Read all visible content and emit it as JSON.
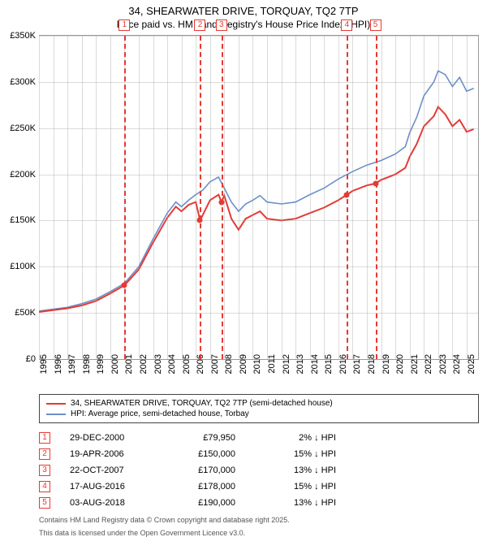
{
  "title": "34, SHEARWATER DRIVE, TORQUAY, TQ2 7TP",
  "subtitle": "Price paid vs. HM Land Registry's House Price Index (HPI)",
  "chart": {
    "type": "line",
    "xlim": [
      1995,
      2025.8
    ],
    "ylim": [
      0,
      350000
    ],
    "ytick_step": 50000,
    "yticks": [
      "£0",
      "£50K",
      "£100K",
      "£150K",
      "£200K",
      "£250K",
      "£300K",
      "£350K"
    ],
    "xticks": [
      1995,
      1996,
      1997,
      1998,
      1999,
      2000,
      2001,
      2002,
      2003,
      2004,
      2005,
      2006,
      2007,
      2008,
      2009,
      2010,
      2011,
      2012,
      2013,
      2014,
      2015,
      2016,
      2017,
      2018,
      2019,
      2020,
      2021,
      2022,
      2023,
      2024,
      2025
    ],
    "grid_color": "#999999",
    "background_color": "#ffffff",
    "series": [
      {
        "name": "HPI: Average price, semi-detached house, Torbay",
        "color": "#6b8fc9",
        "width": 1.6,
        "points": [
          [
            1995,
            52000
          ],
          [
            1996,
            54000
          ],
          [
            1997,
            56000
          ],
          [
            1998,
            60000
          ],
          [
            1999,
            65000
          ],
          [
            2000,
            73000
          ],
          [
            2001,
            82000
          ],
          [
            2002,
            100000
          ],
          [
            2003,
            130000
          ],
          [
            2004,
            158000
          ],
          [
            2004.6,
            170000
          ],
          [
            2005,
            165000
          ],
          [
            2005.5,
            172000
          ],
          [
            2006,
            178000
          ],
          [
            2006.5,
            183000
          ],
          [
            2007,
            192000
          ],
          [
            2007.6,
            197000
          ],
          [
            2008,
            185000
          ],
          [
            2008.5,
            170000
          ],
          [
            2009,
            160000
          ],
          [
            2009.5,
            168000
          ],
          [
            2010,
            172000
          ],
          [
            2010.5,
            177000
          ],
          [
            2011,
            170000
          ],
          [
            2012,
            168000
          ],
          [
            2013,
            170000
          ],
          [
            2014,
            178000
          ],
          [
            2015,
            185000
          ],
          [
            2016,
            195000
          ],
          [
            2017,
            203000
          ],
          [
            2018,
            210000
          ],
          [
            2019,
            215000
          ],
          [
            2020,
            222000
          ],
          [
            2020.7,
            230000
          ],
          [
            2021,
            245000
          ],
          [
            2021.5,
            262000
          ],
          [
            2022,
            285000
          ],
          [
            2022.7,
            300000
          ],
          [
            2023,
            312000
          ],
          [
            2023.5,
            308000
          ],
          [
            2024,
            295000
          ],
          [
            2024.5,
            305000
          ],
          [
            2025,
            290000
          ],
          [
            2025.5,
            293000
          ]
        ]
      },
      {
        "name": "34, SHEARWATER DRIVE, TORQUAY, TQ2 7TP (semi-detached house)",
        "color": "#e53935",
        "width": 2,
        "points": [
          [
            1995,
            51000
          ],
          [
            1996,
            53000
          ],
          [
            1997,
            55000
          ],
          [
            1998,
            58000
          ],
          [
            1999,
            63000
          ],
          [
            2000,
            71000
          ],
          [
            2001,
            79950
          ],
          [
            2002,
            97000
          ],
          [
            2003,
            126000
          ],
          [
            2004,
            153000
          ],
          [
            2004.6,
            165000
          ],
          [
            2005,
            160000
          ],
          [
            2005.5,
            167000
          ],
          [
            2006,
            170000
          ],
          [
            2006.3,
            150000
          ],
          [
            2007,
            172000
          ],
          [
            2007.6,
            178000
          ],
          [
            2007.8,
            170000
          ],
          [
            2008,
            177000
          ],
          [
            2008.5,
            152000
          ],
          [
            2009,
            140000
          ],
          [
            2009.5,
            152000
          ],
          [
            2010,
            156000
          ],
          [
            2010.5,
            160000
          ],
          [
            2011,
            152000
          ],
          [
            2012,
            150000
          ],
          [
            2013,
            152000
          ],
          [
            2014,
            158000
          ],
          [
            2015,
            164000
          ],
          [
            2016,
            172000
          ],
          [
            2016.6,
            178000
          ],
          [
            2017,
            182000
          ],
          [
            2018,
            188000
          ],
          [
            2018.6,
            190000
          ],
          [
            2019,
            194000
          ],
          [
            2020,
            200000
          ],
          [
            2020.7,
            207000
          ],
          [
            2021,
            219000
          ],
          [
            2021.5,
            233000
          ],
          [
            2022,
            252000
          ],
          [
            2022.7,
            263000
          ],
          [
            2023,
            273000
          ],
          [
            2023.5,
            265000
          ],
          [
            2024,
            252000
          ],
          [
            2024.5,
            259000
          ],
          [
            2025,
            246000
          ],
          [
            2025.5,
            249000
          ]
        ]
      }
    ],
    "markers": [
      {
        "n": "1",
        "x": 2001.0,
        "y": 79950
      },
      {
        "n": "2",
        "x": 2006.3,
        "y": 150000
      },
      {
        "n": "3",
        "x": 2007.8,
        "y": 170000
      },
      {
        "n": "4",
        "x": 2016.6,
        "y": 178000
      },
      {
        "n": "5",
        "x": 2018.6,
        "y": 190000
      }
    ]
  },
  "legend": [
    {
      "color": "#e53935",
      "label": "34, SHEARWATER DRIVE, TORQUAY, TQ2 7TP (semi-detached house)"
    },
    {
      "color": "#6b8fc9",
      "label": "HPI: Average price, semi-detached house, Torbay"
    }
  ],
  "events": [
    {
      "n": "1",
      "date": "29-DEC-2000",
      "price": "£79,950",
      "delta": "2% ↓ HPI"
    },
    {
      "n": "2",
      "date": "19-APR-2006",
      "price": "£150,000",
      "delta": "15% ↓ HPI"
    },
    {
      "n": "3",
      "date": "22-OCT-2007",
      "price": "£170,000",
      "delta": "13% ↓ HPI"
    },
    {
      "n": "4",
      "date": "17-AUG-2016",
      "price": "£178,000",
      "delta": "15% ↓ HPI"
    },
    {
      "n": "5",
      "date": "03-AUG-2018",
      "price": "£190,000",
      "delta": "13% ↓ HPI"
    }
  ],
  "footer1": "Contains HM Land Registry data © Crown copyright and database right 2025.",
  "footer2": "This data is licensed under the Open Government Licence v3.0."
}
